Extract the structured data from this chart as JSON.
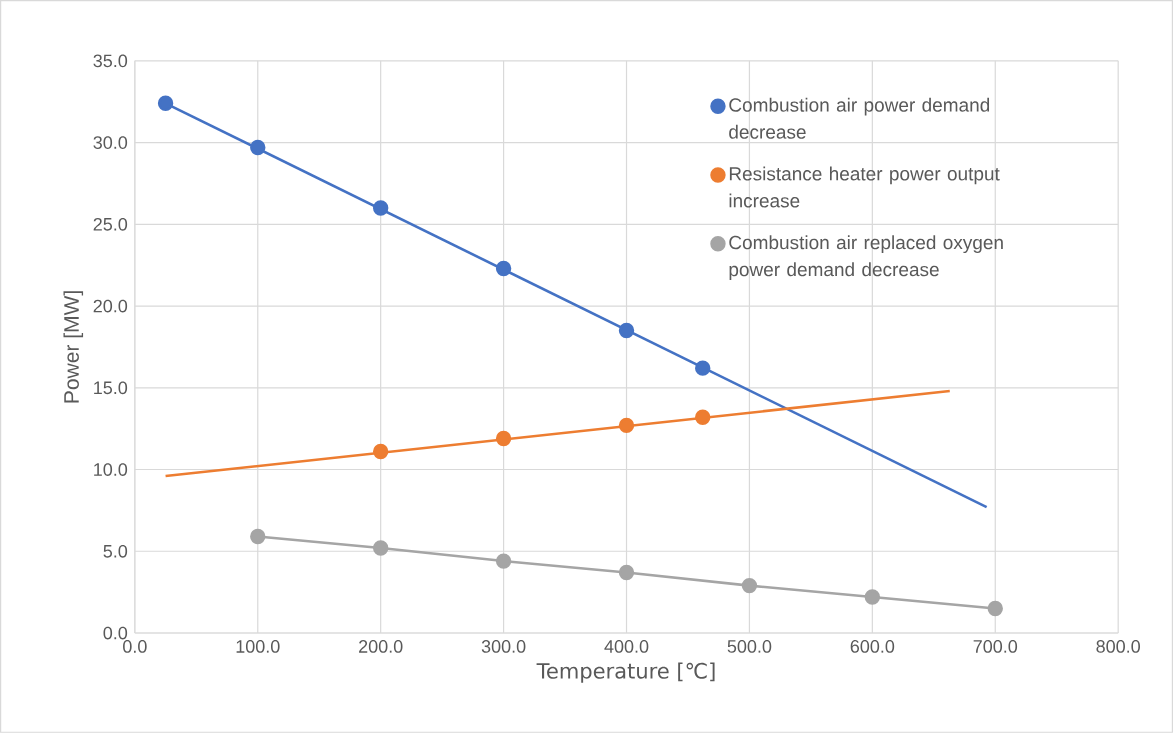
{
  "chart_data": {
    "type": "scatter",
    "xlabel": "Temperature [℃]",
    "ylabel": "Power [MW]",
    "xlim": [
      0,
      800
    ],
    "ylim": [
      0,
      35
    ],
    "xticks": [
      {
        "value": 0,
        "label": "0.0"
      },
      {
        "value": 100,
        "label": "100.0"
      },
      {
        "value": 200,
        "label": "200.0"
      },
      {
        "value": 300,
        "label": "300.0"
      },
      {
        "value": 400,
        "label": "400.0"
      },
      {
        "value": 500,
        "label": "500.0"
      },
      {
        "value": 600,
        "label": "600.0"
      },
      {
        "value": 700,
        "label": "700.0"
      },
      {
        "value": 800,
        "label": "800.0"
      }
    ],
    "yticks": [
      {
        "value": 0,
        "label": "0.0"
      },
      {
        "value": 5,
        "label": "5.0"
      },
      {
        "value": 10,
        "label": "10.0"
      },
      {
        "value": 15,
        "label": "15.0"
      },
      {
        "value": 20,
        "label": "20.0"
      },
      {
        "value": 25,
        "label": "25.0"
      },
      {
        "value": 30,
        "label": "30.0"
      },
      {
        "value": 35,
        "label": "35.0"
      }
    ],
    "grid": true,
    "legend": "top right",
    "marker": "circle",
    "series": [
      {
        "name": "Combustion air power demand decrease",
        "color": "#4472c4",
        "x": [
          25,
          100,
          200,
          300,
          400,
          462
        ],
        "values": [
          32.4,
          29.7,
          26.0,
          22.3,
          18.5,
          16.2
        ]
      },
      {
        "name": "Resistance heater power output increase",
        "color": "#ed7d31",
        "x": [
          200,
          300,
          400,
          462
        ],
        "values": [
          11.1,
          11.9,
          12.7,
          13.2
        ]
      },
      {
        "name": "Combustion air replaced oxygen power demand decrease",
        "type": "line",
        "marker": "circle",
        "color": "#a5a5a5",
        "x": [
          100,
          200,
          300,
          400,
          500,
          600,
          700
        ],
        "values": [
          5.9,
          5.2,
          4.4,
          3.7,
          2.9,
          2.2,
          1.5
        ]
      },
      {
        "type": "line",
        "marker": "none",
        "color": "#4472c4",
        "x": [
          25,
          693
        ],
        "values": [
          32.4,
          7.7
        ]
      },
      {
        "type": "line",
        "marker": "none",
        "color": "#ed7d31",
        "x": [
          25,
          663
        ],
        "values": [
          9.6,
          14.8
        ]
      }
    ]
  }
}
